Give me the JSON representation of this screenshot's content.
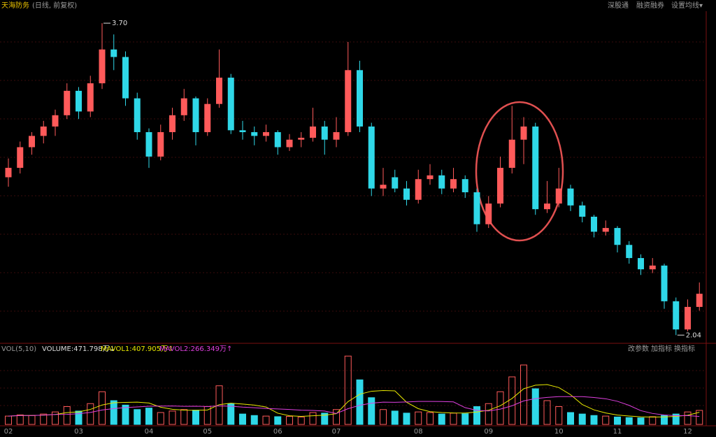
{
  "chart_data": {
    "type": "candlestick",
    "title": "天海防务",
    "subtitle": "(日线, 前复权)",
    "toolbar": [
      "深股通",
      "融资融券",
      "设置均线▾"
    ],
    "categories": [
      "02",
      null,
      null,
      null,
      null,
      null,
      "03",
      null,
      null,
      null,
      null,
      null,
      "04",
      null,
      null,
      null,
      null,
      "05",
      null,
      null,
      null,
      null,
      null,
      "06",
      null,
      null,
      null,
      null,
      "07",
      null,
      null,
      null,
      null,
      null,
      null,
      "08",
      null,
      null,
      null,
      null,
      null,
      "09",
      null,
      null,
      null,
      null,
      null,
      "10",
      null,
      null,
      null,
      null,
      "11",
      null,
      null,
      null,
      null,
      null,
      "12",
      null
    ],
    "open": [
      2.88,
      2.93,
      3.04,
      3.1,
      3.15,
      3.21,
      3.34,
      3.23,
      3.38,
      3.56,
      3.52,
      3.3,
      3.12,
      2.99,
      3.12,
      3.21,
      3.3,
      3.12,
      3.27,
      3.41,
      3.13,
      3.12,
      3.1,
      3.12,
      3.04,
      3.08,
      3.09,
      3.15,
      3.08,
      3.12,
      3.45,
      3.15,
      2.82,
      2.88,
      2.82,
      2.76,
      2.87,
      2.89,
      2.82,
      2.87,
      2.8,
      2.63,
      2.74,
      2.93,
      3.08,
      3.15,
      2.71,
      2.74,
      2.82,
      2.73,
      2.67,
      2.59,
      2.61,
      2.52,
      2.45,
      2.39,
      2.41,
      2.22,
      2.07,
      2.19
    ],
    "high": [
      2.98,
      3.07,
      3.12,
      3.18,
      3.24,
      3.38,
      3.36,
      3.42,
      3.7,
      3.64,
      3.55,
      3.33,
      3.14,
      3.16,
      3.25,
      3.35,
      3.31,
      3.3,
      3.56,
      3.43,
      3.18,
      3.15,
      3.16,
      3.13,
      3.11,
      3.12,
      3.25,
      3.18,
      3.2,
      3.6,
      3.5,
      3.17,
      2.93,
      2.92,
      2.86,
      2.92,
      2.95,
      2.92,
      2.93,
      2.89,
      2.82,
      2.78,
      2.99,
      3.26,
      3.2,
      3.17,
      2.86,
      2.93,
      2.84,
      2.75,
      2.68,
      2.65,
      2.62,
      2.54,
      2.47,
      2.45,
      2.42,
      2.24,
      2.23,
      2.32
    ],
    "low": [
      2.83,
      2.9,
      3.0,
      3.06,
      3.1,
      3.19,
      3.19,
      3.2,
      3.35,
      3.45,
      3.26,
      3.08,
      2.93,
      2.97,
      3.08,
      3.18,
      3.05,
      3.1,
      3.25,
      3.11,
      3.08,
      3.05,
      3.07,
      3.0,
      3.02,
      3.04,
      3.07,
      3.0,
      3.04,
      3.1,
      3.12,
      2.78,
      2.78,
      2.8,
      2.73,
      2.74,
      2.84,
      2.79,
      2.8,
      2.77,
      2.59,
      2.61,
      2.72,
      2.9,
      2.95,
      2.68,
      2.69,
      2.72,
      2.7,
      2.64,
      2.56,
      2.57,
      2.48,
      2.42,
      2.36,
      2.37,
      2.18,
      2.04,
      2.06,
      2.17
    ],
    "close": [
      2.93,
      3.04,
      3.1,
      3.15,
      3.21,
      3.34,
      3.23,
      3.38,
      3.56,
      3.52,
      3.3,
      3.12,
      2.99,
      3.12,
      3.21,
      3.3,
      3.12,
      3.27,
      3.41,
      3.13,
      3.12,
      3.1,
      3.12,
      3.04,
      3.08,
      3.09,
      3.15,
      3.08,
      3.12,
      3.45,
      3.15,
      2.82,
      2.84,
      2.82,
      2.76,
      2.87,
      2.89,
      2.82,
      2.87,
      2.8,
      2.63,
      2.74,
      2.93,
      3.08,
      3.15,
      2.71,
      2.74,
      2.82,
      2.73,
      2.67,
      2.59,
      2.61,
      2.52,
      2.45,
      2.39,
      2.41,
      2.22,
      2.07,
      2.19,
      2.26
    ],
    "ylim": [
      2.0,
      3.76
    ],
    "high_mark": {
      "value": 3.7,
      "label": "3.70"
    },
    "low_mark": {
      "value": 2.04,
      "label": "2.04"
    },
    "up_color": "#ff5a5a",
    "down_color": "#2fd8e8",
    "volume_panel": {
      "name": "VOL(5,10)",
      "volume_label": "VOLUME:471.798万↓",
      "ma_labels": [
        "MAVOL1:407.905万↑",
        "MAVOL2:266.349万↑"
      ],
      "buttons": [
        "改参数",
        "加指标",
        "换指标"
      ],
      "ylim": [
        0,
        2400
      ],
      "volumes": [
        280,
        320,
        300,
        350,
        420,
        600,
        450,
        700,
        1100,
        800,
        650,
        500,
        550,
        400,
        450,
        500,
        480,
        600,
        1300,
        700,
        350,
        300,
        280,
        260,
        270,
        250,
        400,
        380,
        500,
        2300,
        1500,
        900,
        500,
        450,
        380,
        420,
        400,
        350,
        380,
        360,
        600,
        700,
        1100,
        1600,
        2000,
        1200,
        800,
        600,
        400,
        350,
        300,
        280,
        250,
        230,
        220,
        260,
        300,
        350,
        420,
        471.798
      ],
      "series": [
        {
          "name": "MAVOL1",
          "color": "#e8e800",
          "values": [
            280,
            300,
            300,
            313,
            334,
            398,
            424,
            504,
            654,
            730,
            740,
            750,
            720,
            580,
            510,
            480,
            476,
            486,
            666,
            716,
            686,
            650,
            586,
            378,
            292,
            272,
            292,
            312,
            360,
            766,
            1016,
            1116,
            1140,
            1130,
            746,
            530,
            430,
            400,
            386,
            382,
            418,
            478,
            628,
            872,
            1200,
            1320,
            1340,
            1240,
            1000,
            670,
            490,
            386,
            316,
            282,
            256,
            248,
            252,
            272,
            310,
            407.905
          ]
        },
        {
          "name": "MAVOL2",
          "color": "#e040e0",
          "values": [
            280,
            300,
            300,
            313,
            334,
            339,
            362,
            402,
            484,
            532,
            569,
            587,
            612,
            617,
            620,
            610,
            613,
            603,
            623,
            613,
            583,
            563,
            536,
            522,
            504,
            479,
            471,
            449,
            369,
            529,
            644,
            714,
            750,
            745,
            756,
            773,
            773,
            770,
            758,
            564,
            474,
            454,
            514,
            627,
            791,
            869,
            909,
            934,
            936,
            935,
            905,
            863,
            778,
            641,
            463,
            369,
            319,
            294,
            296,
            266.349
          ]
        }
      ]
    }
  }
}
